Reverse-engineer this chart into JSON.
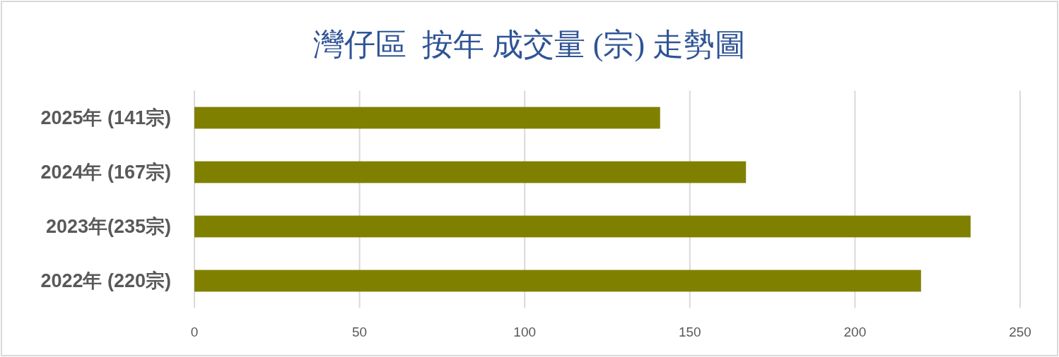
{
  "chart_data": {
    "type": "bar",
    "orientation": "horizontal",
    "title": "灣仔區  按年 成交量 (宗) 走勢圖",
    "categories": [
      "2025年 (141宗)",
      "2024年 (167宗)",
      "2023年(235宗)",
      "2022年 (220宗)"
    ],
    "values": [
      141,
      167,
      235,
      220
    ],
    "color": "#808000",
    "xlim": [
      0,
      250
    ],
    "xticks": [
      0,
      50,
      100,
      150,
      200,
      250
    ],
    "grid": "x"
  }
}
